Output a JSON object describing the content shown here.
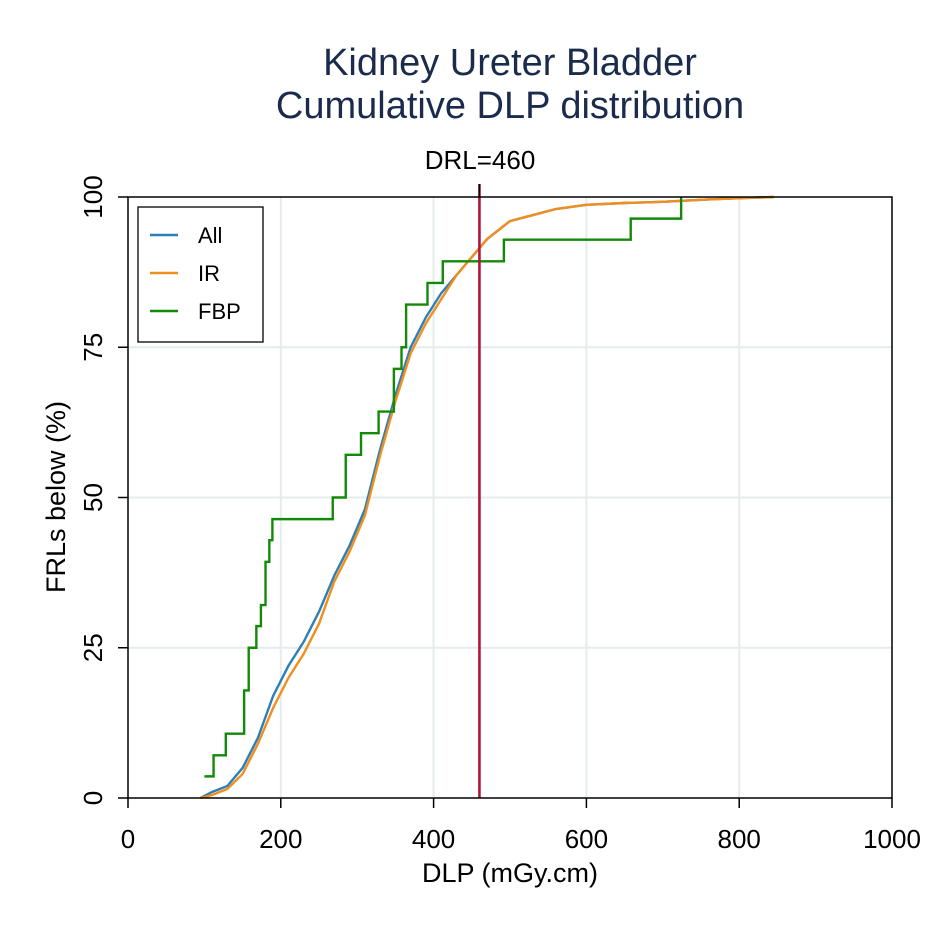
{
  "chart_data": {
    "type": "line",
    "title": "Kidney Ureter Bladder",
    "subtitle": "Cumulative DLP distribution",
    "xlabel": "DLP (mGy.cm)",
    "ylabel": "FRLs below (%)",
    "xlim": [
      0,
      1000
    ],
    "ylim": [
      0,
      100
    ],
    "xticks": [
      "0",
      "200",
      "400",
      "600",
      "800",
      "1000"
    ],
    "yticks": [
      "0",
      "25",
      "50",
      "75",
      "100"
    ],
    "grid": true,
    "legend_position": "top-left",
    "reference_line": {
      "label": "DRL=460",
      "x": 460,
      "color": "#b2143c"
    },
    "series": [
      {
        "name": "All",
        "color": "#2c7fb8",
        "step": false,
        "x": [
          95,
          110,
          130,
          150,
          170,
          190,
          210,
          230,
          250,
          270,
          290,
          310,
          330,
          350,
          370,
          390,
          410,
          430,
          450,
          470,
          500,
          530,
          560,
          600,
          650,
          700,
          760,
          800,
          845
        ],
        "y": [
          0,
          1,
          2,
          5,
          10,
          17,
          22,
          26,
          31,
          37,
          42,
          48,
          58,
          67,
          75,
          80,
          84,
          87,
          90,
          93,
          96,
          97,
          98,
          98.7,
          99,
          99.2,
          99.6,
          99.8,
          100
        ]
      },
      {
        "name": "IR",
        "color": "#f28e1c",
        "step": false,
        "x": [
          95,
          110,
          130,
          150,
          170,
          190,
          210,
          230,
          250,
          270,
          290,
          310,
          330,
          350,
          370,
          390,
          410,
          430,
          450,
          470,
          500,
          530,
          560,
          600,
          650,
          700,
          760,
          800,
          845
        ],
        "y": [
          0,
          0.5,
          1.5,
          4,
          9,
          15,
          20,
          24,
          29,
          36,
          41,
          47,
          57,
          66,
          74,
          79,
          83,
          87,
          90,
          93,
          96,
          97,
          98,
          98.7,
          99,
          99.2,
          99.6,
          99.8,
          100
        ]
      },
      {
        "name": "FBP",
        "color": "#138a07",
        "step": true,
        "x": [
          100,
          112,
          128,
          152,
          158,
          168,
          174,
          180,
          185,
          189,
          268,
          285,
          305,
          328,
          348,
          358,
          364,
          392,
          412,
          492,
          658,
          724
        ],
        "y": [
          3.6,
          7.1,
          10.7,
          17.9,
          25,
          28.6,
          32.1,
          39.3,
          42.9,
          46.4,
          50,
          57.1,
          60.7,
          64.3,
          71.4,
          75,
          82.1,
          85.7,
          89.3,
          92.9,
          96.4,
          100
        ]
      }
    ]
  }
}
